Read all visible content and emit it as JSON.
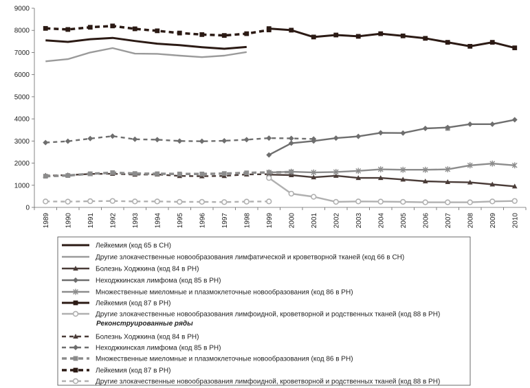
{
  "chart_data": {
    "type": "line",
    "x": [
      "1989",
      "1990",
      "1991",
      "1992",
      "1993",
      "1994",
      "1995",
      "1996",
      "1997",
      "1998",
      "1999",
      "2000",
      "2001",
      "2002",
      "2003",
      "2004",
      "2005",
      "2006",
      "2007",
      "2008",
      "2009",
      "2010"
    ],
    "ylim": [
      0,
      9000
    ],
    "yticks": [
      "0",
      "1000",
      "2000",
      "3000",
      "4000",
      "5000",
      "6000",
      "7000",
      "8000",
      "9000"
    ],
    "xlabel": "",
    "ylabel": "",
    "grid": false,
    "legend_subtitle": "Реконструированные ряды",
    "series": [
      {
        "name": "Лейкемия (код 65 в СН)",
        "color": "#2b1a14",
        "width": 3,
        "dash": "",
        "marker": "none",
        "values": [
          7550,
          7480,
          7600,
          7660,
          7520,
          7400,
          7330,
          7240,
          7170,
          7250,
          null,
          null,
          null,
          null,
          null,
          null,
          null,
          null,
          null,
          null,
          null,
          null
        ]
      },
      {
        "name": "Другие злокачественные новообразования лимфатической и кроветворной тканей (код 66 в СН)",
        "color": "#9a9a9a",
        "width": 2.4,
        "dash": "",
        "marker": "none",
        "values": [
          6600,
          6700,
          7000,
          7200,
          6950,
          6940,
          6860,
          6790,
          6860,
          7020,
          null,
          null,
          null,
          null,
          null,
          null,
          null,
          null,
          null,
          null,
          null,
          null
        ]
      },
      {
        "name": "Болезнь Ходжкина (код 84 в РН)",
        "color": "#4a3c38",
        "width": 2.4,
        "dash": "",
        "marker": "triangle",
        "values": [
          null,
          null,
          null,
          null,
          null,
          null,
          null,
          null,
          null,
          null,
          1480,
          1460,
          1360,
          1430,
          1330,
          1330,
          1260,
          1180,
          1150,
          1130,
          1040,
          950
        ]
      },
      {
        "name": "Неходжкинская лимфома (код 85 в РН)",
        "color": "#6e6e6e",
        "width": 2.4,
        "dash": "",
        "marker": "diamond",
        "values": [
          null,
          null,
          null,
          null,
          null,
          null,
          null,
          null,
          null,
          null,
          2370,
          2900,
          3000,
          3130,
          3210,
          3370,
          3360,
          3570,
          3610,
          3760,
          3760,
          3960
        ]
      },
      {
        "name": "Множественные миеломные и плазмоклеточные новообразования (код 86 в РН)",
        "color": "#8c8c8c",
        "width": 2.4,
        "dash": "",
        "marker": "x",
        "values": [
          null,
          null,
          null,
          null,
          null,
          null,
          null,
          null,
          null,
          null,
          1580,
          1610,
          1580,
          1600,
          1650,
          1720,
          1700,
          1700,
          1720,
          1900,
          1980,
          1900
        ]
      },
      {
        "name": "Лейкемия (код 87 в РН)",
        "color": "#2b1a14",
        "width": 3,
        "dash": "",
        "marker": "square",
        "values": [
          null,
          null,
          null,
          null,
          null,
          null,
          null,
          null,
          null,
          null,
          8080,
          8010,
          7700,
          7790,
          7730,
          7850,
          7750,
          7640,
          7460,
          7280,
          7460,
          7210
        ]
      },
      {
        "name": "Другие злокачественные новообразования лимфоидной, кроветворной и родственных тканей (код 88 в РН)",
        "color": "#b0b0b0",
        "width": 2.4,
        "dash": "",
        "marker": "circle",
        "values": [
          null,
          null,
          null,
          null,
          null,
          null,
          null,
          null,
          null,
          null,
          1330,
          620,
          480,
          250,
          270,
          260,
          250,
          230,
          230,
          230,
          270,
          290
        ]
      },
      {
        "name": "Болезнь Ходжкина (код 84 в РН)",
        "color": "#4a3c38",
        "width": 2.4,
        "dash": "6,5",
        "marker": "triangle",
        "reconstructed": true,
        "values": [
          1440,
          1460,
          1510,
          1520,
          1480,
          1490,
          1420,
          1410,
          1420,
          1490,
          1500,
          null,
          null,
          null,
          null,
          null,
          null,
          null,
          null,
          null,
          null,
          null
        ]
      },
      {
        "name": "Неходжкинская лимфома (код 85 в РН)",
        "color": "#6e6e6e",
        "width": 2.4,
        "dash": "6,5",
        "marker": "diamond",
        "reconstructed": true,
        "values": [
          2930,
          2990,
          3110,
          3220,
          3080,
          3060,
          3000,
          2990,
          3010,
          3060,
          3130,
          3120,
          3090,
          null,
          null,
          null,
          null,
          null,
          null,
          null,
          null,
          null
        ]
      },
      {
        "name": "Множественные миеломные и плазмоклеточные новообразования (код 86 в РН)",
        "color": "#8c8c8c",
        "width": 3.5,
        "dash": "7,5",
        "marker": "square",
        "reconstructed": true,
        "values": [
          1410,
          1440,
          1520,
          1570,
          1530,
          1520,
          1510,
          1510,
          1530,
          1560,
          1580,
          1600,
          null,
          null,
          null,
          null,
          null,
          null,
          3570,
          null,
          null,
          null
        ]
      },
      {
        "name": "Лейкемия (код 87 в РН)",
        "color": "#2b1a14",
        "width": 3.5,
        "dash": "7,5",
        "marker": "square",
        "reconstructed": true,
        "values": [
          8090,
          8040,
          8140,
          8200,
          8070,
          7980,
          7880,
          7810,
          7770,
          7850,
          8020,
          null,
          null,
          null,
          null,
          null,
          null,
          null,
          null,
          null,
          null,
          null
        ]
      },
      {
        "name": "Другие злокачественные новообразования лимфоидной, кроветворной и родственных тканей (код 88 в РН)",
        "color": "#b0b0b0",
        "width": 2.4,
        "dash": "6,5",
        "marker": "circle",
        "reconstructed": true,
        "values": [
          270,
          260,
          280,
          290,
          270,
          270,
          250,
          250,
          240,
          260,
          270,
          null,
          null,
          null,
          null,
          null,
          null,
          null,
          null,
          null,
          null,
          null
        ]
      }
    ]
  }
}
